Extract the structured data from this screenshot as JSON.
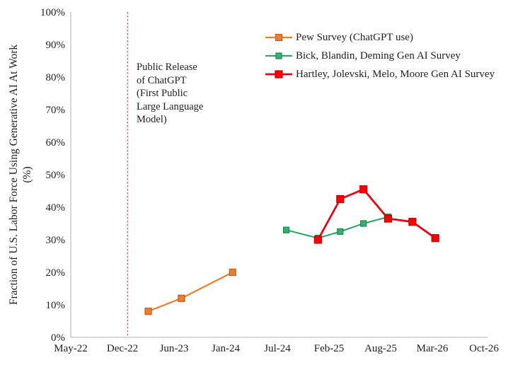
{
  "chart_data": {
    "type": "line",
    "title": "",
    "ylabel_line1": "Fraction of U.S. Labor Force Using Generative AI At Work",
    "ylabel_line2": "(%)",
    "y_axis": {
      "min": 0,
      "max": 100,
      "step": 10,
      "tick_suffix": "%"
    },
    "x_ticks": [
      {
        "label": "May-22",
        "m": 0
      },
      {
        "label": "Dec-22",
        "m": 7
      },
      {
        "label": "Jun-23",
        "m": 13
      },
      {
        "label": "Jan-24",
        "m": 20
      },
      {
        "label": "Jul-24",
        "m": 26
      },
      {
        "label": "Feb-25",
        "m": 33
      },
      {
        "label": "Aug-25",
        "m": 39
      },
      {
        "label": "Mar-26",
        "m": 46
      },
      {
        "label": "Oct-26",
        "m": 53
      }
    ],
    "annotation": {
      "lines": [
        "Public Release",
        "of ChatGPT",
        "(First Public",
        "Large Language",
        "Model)"
      ],
      "vline_date": "Dec-22",
      "vline_m": 7.6,
      "vline_color": "#c0504d"
    },
    "series": [
      {
        "name": "Pew Survey (ChatGPT use)",
        "color": "#ED7D31",
        "marker_fill": "#ED7D31",
        "marker_stroke": "#C55A11",
        "marker_size": 9,
        "line_width": 2.2,
        "points": [
          {
            "date": "Mar-23",
            "m": 10.0,
            "value": 8
          },
          {
            "date": "Jul-23",
            "m": 14.0,
            "value": 12
          },
          {
            "date": "Feb-24",
            "m": 20.8,
            "value": 20
          }
        ]
      },
      {
        "name": "Bick, Blandin, Deming Gen AI Survey",
        "color": "#21A663",
        "marker_fill": "#35B273",
        "marker_stroke": "#128A47",
        "marker_size": 8,
        "line_width": 2.0,
        "points": [
          {
            "date": "Aug-24",
            "m": 27.2,
            "value": 33
          },
          {
            "date": "Dec-24",
            "m": 31.5,
            "value": 30.5
          },
          {
            "date": "Mar-25",
            "m": 34.3,
            "value": 32.5
          },
          {
            "date": "Jun-25",
            "m": 37.0,
            "value": 35
          },
          {
            "date": "Sep-25",
            "m": 40.0,
            "value": 37
          }
        ]
      },
      {
        "name": "Hartley, Jolevski, Melo, Moore Gen AI Survey",
        "color": "#E30613",
        "marker_fill": "#FF0000",
        "marker_stroke": "#C00000",
        "marker_size": 10,
        "line_width": 2.8,
        "points": [
          {
            "date": "Dec-24",
            "m": 31.5,
            "value": 30
          },
          {
            "date": "Mar-25",
            "m": 34.3,
            "value": 42.5
          },
          {
            "date": "Jun-25",
            "m": 37.0,
            "value": 45.5
          },
          {
            "date": "Sep-25",
            "m": 40.0,
            "value": 36.5
          },
          {
            "date": "Dec-25",
            "m": 43.3,
            "value": 35.5
          },
          {
            "date": "Mar-26",
            "m": 46.4,
            "value": 30.5
          }
        ]
      }
    ],
    "axis_color": "#BFBFBF",
    "text_color": "#1f1f1f",
    "grid": false,
    "legend_position": "top-right"
  }
}
